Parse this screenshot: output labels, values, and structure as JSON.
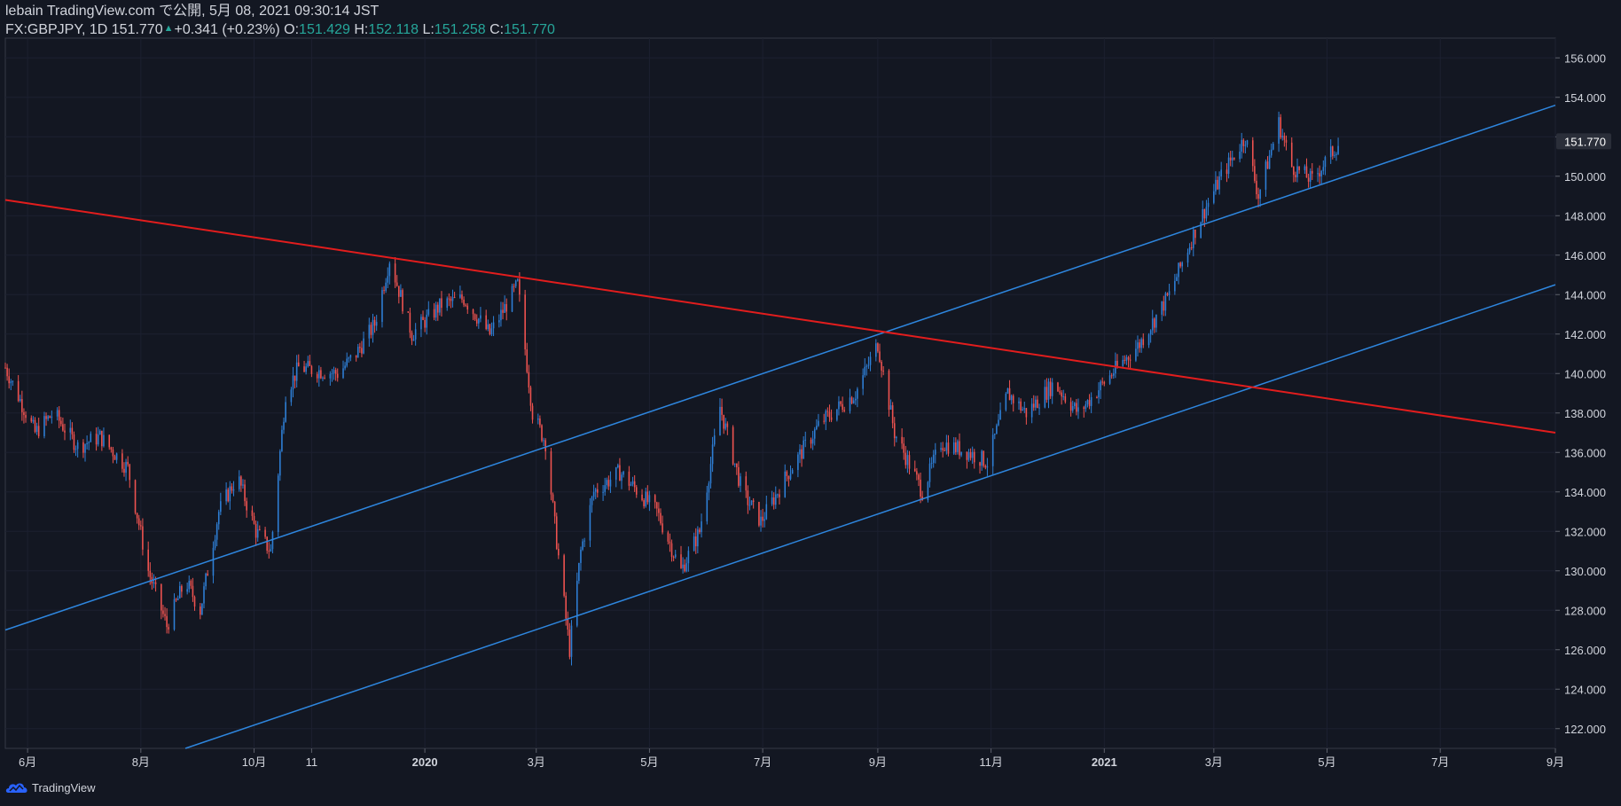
{
  "header": {
    "line1": "lebain TradingView.com で公開, 5月 08, 2021 09:30:14 JST",
    "symbol": "FX:GBPJPY, 1D",
    "last": "151.770",
    "change": "+0.341 (+0.23%)",
    "o_label": "O:",
    "o_value": "151.429",
    "h_label": "H:",
    "h_value": "152.118",
    "l_label": "L:",
    "l_value": "151.258",
    "c_label": "C:",
    "c_value": "151.770",
    "up_color": "#26a69a"
  },
  "footer": {
    "brand": "TradingView",
    "logo_icon": "tradingview-cloud-icon"
  },
  "colors": {
    "background": "#131722",
    "candle_up": "#2e7fd6",
    "candle_down": "#ef5350",
    "channel_line": "#2e86de",
    "resistance_line": "#e21d1d",
    "axis_text": "#d1d4dc",
    "grid": "#1c2030",
    "last_price_bg": "#2a2e39"
  },
  "chart_data": {
    "type": "candlestick",
    "symbol": "FX:GBPJPY",
    "interval": "1D",
    "ylim": [
      121,
      157
    ],
    "y_ticks": [
      "122.000",
      "124.000",
      "126.000",
      "128.000",
      "130.000",
      "132.000",
      "134.000",
      "136.000",
      "138.000",
      "140.000",
      "142.000",
      "144.000",
      "146.000",
      "148.000",
      "150.000",
      "152.000",
      "154.000",
      "156.000"
    ],
    "y_tick_values": [
      122,
      124,
      126,
      128,
      130,
      132,
      134,
      136,
      138,
      140,
      142,
      144,
      146,
      148,
      150,
      152,
      154,
      156
    ],
    "x_start": "2019-05-20",
    "x_end": "2021-09-01",
    "x_ticks": [
      {
        "label": "6月",
        "date": "2019-06-01"
      },
      {
        "label": "8月",
        "date": "2019-08-01"
      },
      {
        "label": "10月",
        "date": "2019-10-01"
      },
      {
        "label": "11",
        "date": "2019-11-01"
      },
      {
        "label": "2020",
        "date": "2020-01-01"
      },
      {
        "label": "3月",
        "date": "2020-03-01"
      },
      {
        "label": "5月",
        "date": "2020-05-01"
      },
      {
        "label": "7月",
        "date": "2020-07-01"
      },
      {
        "label": "9月",
        "date": "2020-09-01"
      },
      {
        "label": "11月",
        "date": "2020-11-01"
      },
      {
        "label": "2021",
        "date": "2021-01-01"
      },
      {
        "label": "3月",
        "date": "2021-03-01"
      },
      {
        "label": "5月",
        "date": "2021-05-01"
      },
      {
        "label": "7月",
        "date": "2021-07-01"
      },
      {
        "label": "9月",
        "date": "2021-09-01"
      }
    ],
    "last_price": "151.770",
    "last_price_value": 151.77,
    "path_anchors": [
      {
        "date": "2019-05-20",
        "close": 140.3
      },
      {
        "date": "2019-06-05",
        "close": 137.0
      },
      {
        "date": "2019-06-15",
        "close": 138.0
      },
      {
        "date": "2019-06-28",
        "close": 136.3
      },
      {
        "date": "2019-07-10",
        "close": 136.8
      },
      {
        "date": "2019-07-25",
        "close": 135.2
      },
      {
        "date": "2019-08-05",
        "close": 130.0
      },
      {
        "date": "2019-08-15",
        "close": 127.2
      },
      {
        "date": "2019-08-25",
        "close": 129.5
      },
      {
        "date": "2019-09-02",
        "close": 128.0
      },
      {
        "date": "2019-09-12",
        "close": 133.0
      },
      {
        "date": "2019-09-22",
        "close": 134.8
      },
      {
        "date": "2019-10-02",
        "close": 132.0
      },
      {
        "date": "2019-10-10",
        "close": 131.0
      },
      {
        "date": "2019-10-18",
        "close": 139.0
      },
      {
        "date": "2019-10-25",
        "close": 140.3
      },
      {
        "date": "2019-11-15",
        "close": 140.0
      },
      {
        "date": "2019-11-25",
        "close": 141.0
      },
      {
        "date": "2019-12-05",
        "close": 142.5
      },
      {
        "date": "2019-12-13",
        "close": 145.8
      },
      {
        "date": "2019-12-25",
        "close": 142.0
      },
      {
        "date": "2020-01-10",
        "close": 143.5
      },
      {
        "date": "2020-01-22",
        "close": 143.8
      },
      {
        "date": "2020-02-05",
        "close": 142.0
      },
      {
        "date": "2020-02-20",
        "close": 144.5
      },
      {
        "date": "2020-02-28",
        "close": 138.0
      },
      {
        "date": "2020-03-06",
        "close": 136.5
      },
      {
        "date": "2020-03-12",
        "close": 131.5
      },
      {
        "date": "2020-03-19",
        "close": 126.0
      },
      {
        "date": "2020-03-25",
        "close": 131.0
      },
      {
        "date": "2020-04-01",
        "close": 134.0
      },
      {
        "date": "2020-04-15",
        "close": 135.0
      },
      {
        "date": "2020-05-05",
        "close": 133.0
      },
      {
        "date": "2020-05-18",
        "close": 130.0
      },
      {
        "date": "2020-05-28",
        "close": 132.0
      },
      {
        "date": "2020-06-08",
        "close": 138.3
      },
      {
        "date": "2020-06-20",
        "close": 134.0
      },
      {
        "date": "2020-06-30",
        "close": 132.5
      },
      {
        "date": "2020-07-15",
        "close": 135.0
      },
      {
        "date": "2020-08-01",
        "close": 137.5
      },
      {
        "date": "2020-08-20",
        "close": 139.0
      },
      {
        "date": "2020-09-01",
        "close": 141.5
      },
      {
        "date": "2020-09-10",
        "close": 137.0
      },
      {
        "date": "2020-09-25",
        "close": 134.0
      },
      {
        "date": "2020-10-05",
        "close": 136.5
      },
      {
        "date": "2020-10-20",
        "close": 136.0
      },
      {
        "date": "2020-10-30",
        "close": 135.5
      },
      {
        "date": "2020-11-10",
        "close": 139.0
      },
      {
        "date": "2020-11-20",
        "close": 138.0
      },
      {
        "date": "2020-12-05",
        "close": 139.5
      },
      {
        "date": "2020-12-18",
        "close": 138.0
      },
      {
        "date": "2021-01-05",
        "close": 140.0
      },
      {
        "date": "2021-01-20",
        "close": 141.5
      },
      {
        "date": "2021-02-05",
        "close": 144.0
      },
      {
        "date": "2021-02-20",
        "close": 147.5
      },
      {
        "date": "2021-03-05",
        "close": 150.0
      },
      {
        "date": "2021-03-18",
        "close": 152.0
      },
      {
        "date": "2021-03-25",
        "close": 149.0
      },
      {
        "date": "2021-04-05",
        "close": 152.7
      },
      {
        "date": "2021-04-12",
        "close": 150.5
      },
      {
        "date": "2021-04-23",
        "close": 149.8
      },
      {
        "date": "2021-05-08",
        "close": 151.77
      }
    ],
    "trendlines": [
      {
        "name": "upper-channel",
        "color": "#2e86de",
        "points": [
          {
            "date": "2019-05-20",
            "value": 127.0
          },
          {
            "date": "2021-09-01",
            "value": 153.6
          }
        ]
      },
      {
        "name": "lower-channel",
        "color": "#2e86de",
        "points": [
          {
            "date": "2019-08-25",
            "value": 121.0
          },
          {
            "date": "2021-09-01",
            "value": 144.5
          }
        ]
      },
      {
        "name": "resistance",
        "color": "#e21d1d",
        "points": [
          {
            "date": "2019-05-20",
            "value": 148.8
          },
          {
            "date": "2021-09-01",
            "value": 137.0
          }
        ]
      }
    ]
  }
}
